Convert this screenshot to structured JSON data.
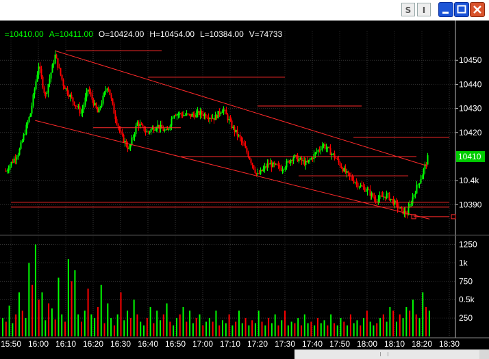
{
  "window": {
    "btn_s": "S",
    "btn_i": "I"
  },
  "quote": {
    "last": "=10410.00",
    "ask": "A=10411.00",
    "open": "O=10424.00",
    "high": "H=10454.00",
    "low": "L=10384.00",
    "volume": "V=74733"
  },
  "colors": {
    "background": "#000000",
    "up": "#00ff00",
    "down": "#ff0000",
    "grid": "#333333",
    "lines": "#ff2a2a",
    "axis_text": "#ffffff",
    "last_price_box": "#00cc00"
  },
  "chart_data": [
    {
      "type": "candlestick",
      "price_axis": {
        "range": [
          10379,
          10462
        ],
        "ticks": [
          10450,
          10440,
          10430,
          10420,
          10400,
          10390
        ],
        "tick_labels": [
          "10450",
          "10440",
          "10430",
          "10420",
          "10.4k",
          "10390"
        ]
      },
      "last_price": {
        "value": 10410,
        "label": "10410"
      },
      "time_axis": {
        "labels": [
          "15:50",
          "16:00",
          "16:10",
          "16:20",
          "16:30",
          "16:40",
          "16:50",
          "17:00",
          "17:10",
          "17:20",
          "17:30",
          "17:40",
          "17:50",
          "18:00",
          "18:10",
          "18:20",
          "18:30"
        ]
      },
      "price_path": [
        [
          15.8,
          10404
        ],
        [
          15.88,
          10412
        ],
        [
          15.95,
          10428
        ],
        [
          16.0,
          10448
        ],
        [
          16.04,
          10435
        ],
        [
          16.1,
          10452
        ],
        [
          16.15,
          10440
        ],
        [
          16.2,
          10434
        ],
        [
          16.26,
          10428
        ],
        [
          16.3,
          10438
        ],
        [
          16.36,
          10428
        ],
        [
          16.42,
          10440
        ],
        [
          16.46,
          10428
        ],
        [
          16.5,
          10419
        ],
        [
          16.55,
          10413
        ],
        [
          16.6,
          10424
        ],
        [
          16.66,
          10420
        ],
        [
          16.72,
          10423
        ],
        [
          16.78,
          10420
        ],
        [
          16.82,
          10428
        ],
        [
          16.92,
          10427
        ],
        [
          16.98,
          10428
        ],
        [
          17.07,
          10426
        ],
        [
          17.12,
          10430
        ],
        [
          17.18,
          10422
        ],
        [
          17.22,
          10418
        ],
        [
          17.28,
          10410
        ],
        [
          17.33,
          10402
        ],
        [
          17.4,
          10407
        ],
        [
          17.48,
          10405
        ],
        [
          17.55,
          10410
        ],
        [
          17.63,
          10407
        ],
        [
          17.73,
          10415
        ],
        [
          17.8,
          10410
        ],
        [
          17.87,
          10403
        ],
        [
          17.95,
          10398
        ],
        [
          18.0,
          10396
        ],
        [
          18.05,
          10392
        ],
        [
          18.12,
          10394
        ],
        [
          18.2,
          10388
        ],
        [
          18.24,
          10386
        ],
        [
          18.28,
          10394
        ],
        [
          18.33,
          10402
        ],
        [
          18.37,
          10410
        ]
      ],
      "annotations": {
        "channel_upper": [
          [
            16.1,
            10454
          ],
          [
            18.37,
            10406
          ]
        ],
        "channel_lower": [
          [
            15.98,
            10425
          ],
          [
            18.38,
            10384
          ]
        ],
        "horizontal_levels": [
          {
            "price": 10454,
            "from": "16:10",
            "to": "16:45"
          },
          {
            "price": 10443,
            "from": "16:40",
            "to": "17:30"
          },
          {
            "price": 10431,
            "from": "17:20",
            "to": "17:58"
          },
          {
            "price": 10422,
            "from": "16:20",
            "to": "16:52"
          },
          {
            "price": 10418,
            "from": "17:55",
            "to": "18:30"
          },
          {
            "price": 10410,
            "from": "16:52",
            "to": "18:18"
          },
          {
            "price": 10402,
            "from": "17:35",
            "to": "18:15"
          },
          {
            "price": 10391,
            "from": "15:50",
            "to": "18:30"
          },
          {
            "price": 10389,
            "from": "15:50",
            "to": "18:30"
          },
          {
            "price": 10385,
            "from": "18:17",
            "to": "18:30"
          }
        ]
      }
    },
    {
      "type": "bar",
      "name": "volume",
      "y_axis": {
        "range": [
          0,
          1320
        ],
        "ticks": [
          1250,
          1000,
          750,
          500,
          250
        ],
        "tick_labels": [
          "1250",
          "1k",
          "750",
          "0.5k",
          "250"
        ]
      },
      "values": [
        250,
        200,
        420,
        180,
        300,
        600,
        350,
        250,
        1000,
        700,
        1250,
        500,
        600,
        220,
        450,
        380,
        230,
        800,
        300,
        200,
        1050,
        750,
        900,
        300,
        200,
        350,
        650,
        300,
        250,
        400,
        700,
        180,
        450,
        250,
        150,
        300,
        600,
        220,
        350,
        250,
        500,
        300,
        200,
        150,
        250,
        400,
        180,
        350,
        220,
        300,
        450,
        200,
        150,
        250,
        300,
        400,
        200,
        350,
        180,
        250,
        300,
        150,
        200,
        250,
        200,
        350,
        150,
        220,
        180,
        300,
        150,
        200,
        350,
        180,
        250,
        150,
        220,
        180,
        350,
        200,
        150,
        250,
        180,
        300,
        150,
        220,
        350,
        150,
        200,
        180,
        250,
        150,
        300,
        180,
        200,
        150,
        250,
        180,
        220,
        150,
        300,
        180,
        150,
        250,
        200,
        150,
        300,
        180,
        220,
        150,
        250,
        350,
        200,
        150,
        180,
        250,
        300,
        200,
        400,
        350,
        200,
        300,
        250,
        400,
        350,
        500,
        300,
        250,
        600,
        400,
        350
      ]
    }
  ]
}
